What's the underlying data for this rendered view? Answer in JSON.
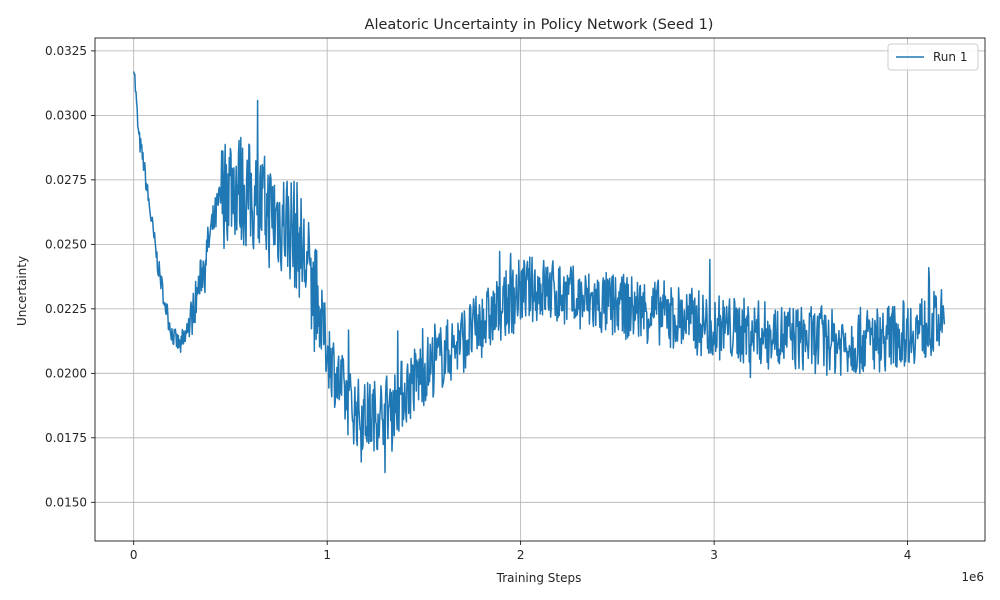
{
  "chart_data": {
    "type": "line",
    "title": "Aleatoric Uncertainty in Policy Network (Seed 1)",
    "xlabel": "Training Steps",
    "ylabel": "Uncertainty",
    "x_offset_label": "1e6",
    "xlim": [
      -200000,
      4400000
    ],
    "ylim": [
      0.0135,
      0.033
    ],
    "x_ticks": [
      0,
      1000000,
      2000000,
      3000000,
      4000000
    ],
    "x_tick_labels": [
      "0",
      "1",
      "2",
      "3",
      "4"
    ],
    "y_ticks": [
      0.015,
      0.0175,
      0.02,
      0.0225,
      0.025,
      0.0275,
      0.03,
      0.0325
    ],
    "y_tick_labels": [
      "0.0150",
      "0.0175",
      "0.0200",
      "0.0225",
      "0.0250",
      "0.0275",
      "0.0300",
      "0.0325"
    ],
    "grid": true,
    "legend_position": "top-right",
    "series": [
      {
        "name": "Run 1",
        "color": "#1f77b4",
        "x": [
          0,
          25000,
          50000,
          75000,
          100000,
          125000,
          150000,
          175000,
          200000,
          225000,
          250000,
          275000,
          300000,
          350000,
          400000,
          450000,
          500000,
          550000,
          600000,
          650000,
          700000,
          750000,
          800000,
          850000,
          900000,
          950000,
          1000000,
          1050000,
          1100000,
          1150000,
          1200000,
          1250000,
          1300000,
          1350000,
          1400000,
          1450000,
          1500000,
          1550000,
          1600000,
          1650000,
          1700000,
          1800000,
          1900000,
          2000000,
          2100000,
          2200000,
          2300000,
          2400000,
          2500000,
          2600000,
          2700000,
          2800000,
          2900000,
          3000000,
          3100000,
          3200000,
          3300000,
          3400000,
          3500000,
          3600000,
          3700000,
          3800000,
          3900000,
          4000000,
          4100000,
          4190000
        ],
        "y": [
          0.0321,
          0.0292,
          0.0282,
          0.0268,
          0.0255,
          0.0242,
          0.0232,
          0.0222,
          0.0215,
          0.0212,
          0.021,
          0.0215,
          0.0222,
          0.0238,
          0.0255,
          0.0268,
          0.0275,
          0.0272,
          0.0268,
          0.0265,
          0.0262,
          0.026,
          0.0258,
          0.0252,
          0.024,
          0.0225,
          0.021,
          0.0198,
          0.019,
          0.0185,
          0.0183,
          0.0184,
          0.0186,
          0.0189,
          0.0193,
          0.0197,
          0.0201,
          0.0204,
          0.0207,
          0.021,
          0.0213,
          0.0219,
          0.0225,
          0.0232,
          0.0233,
          0.0231,
          0.0228,
          0.0227,
          0.0226,
          0.0225,
          0.0224,
          0.0222,
          0.022,
          0.0218,
          0.0217,
          0.0216,
          0.0215,
          0.0214,
          0.0213,
          0.0212,
          0.0212,
          0.0213,
          0.0214,
          0.0216,
          0.0218,
          0.022
        ]
      }
    ]
  }
}
